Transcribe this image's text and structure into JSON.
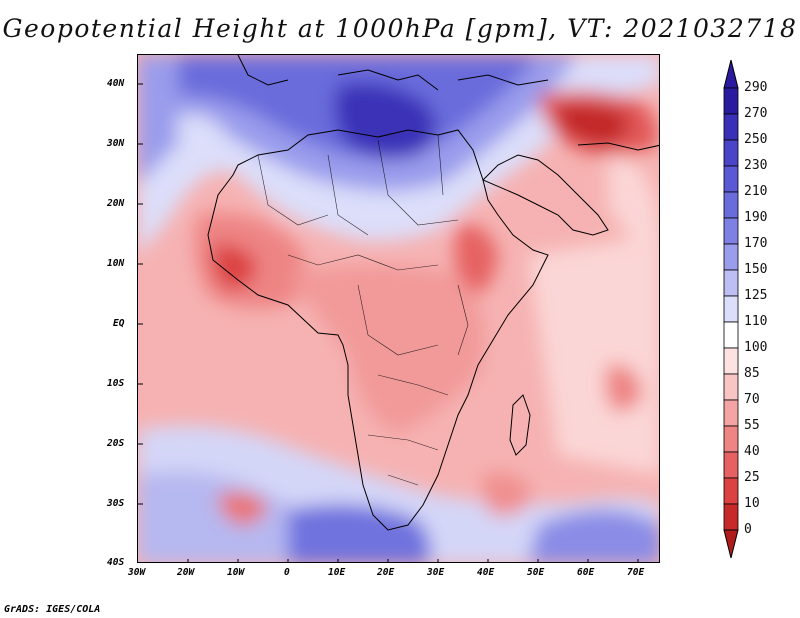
{
  "title": "Geopotential Height at 1000hPa [gpm], VT: 2021032718",
  "credit": "GrADS: IGES/COLA",
  "map": {
    "lat_labels": [
      "40N",
      "30N",
      "20N",
      "10N",
      "EQ",
      "10S",
      "20S",
      "30S",
      "40S"
    ],
    "lon_labels": [
      "30W",
      "20W",
      "10W",
      "0",
      "10E",
      "20E",
      "30E",
      "40E",
      "50E",
      "60E",
      "70E"
    ],
    "lat_range": [
      -40,
      44
    ],
    "lon_range": [
      -30,
      75
    ]
  },
  "colorbar": {
    "levels": [
      "290",
      "270",
      "250",
      "230",
      "210",
      "190",
      "170",
      "150",
      "125",
      "110",
      "100",
      "85",
      "70",
      "55",
      "40",
      "25",
      "10",
      "0"
    ],
    "colors": [
      "#2a1aa0",
      "#3a30b8",
      "#4a44c8",
      "#5a58d4",
      "#6a6cdc",
      "#7e80e4",
      "#9a9cec",
      "#bcbef4",
      "#dcdefa",
      "#ffffff",
      "#fde2e2",
      "#f9c4c4",
      "#f4a4a4",
      "#ee8484",
      "#e66262",
      "#dc4242",
      "#c82a2a",
      "#b01c1c"
    ]
  }
}
